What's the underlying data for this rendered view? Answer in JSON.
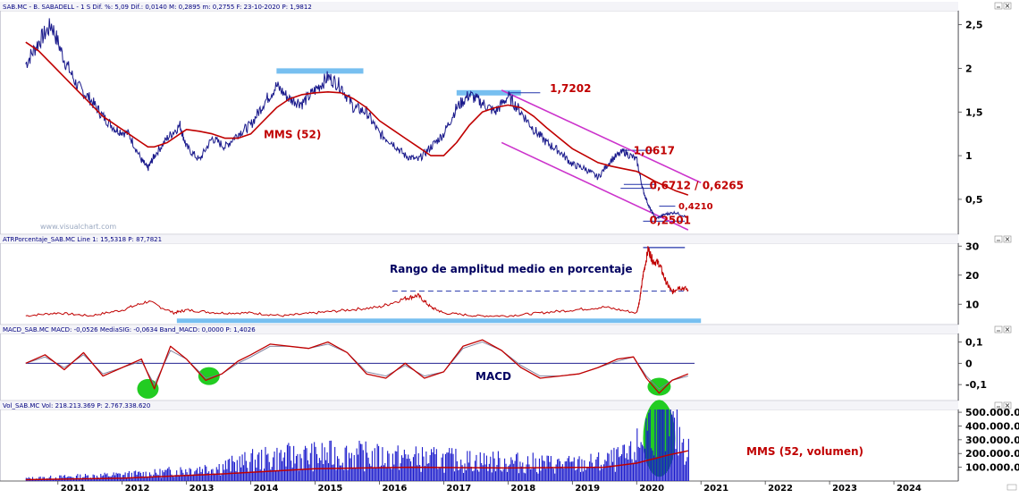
{
  "colors": {
    "price": "#1a1a8c",
    "mms": "#c00000",
    "signal": "#7a7a99",
    "channel": "#cc33cc",
    "highlight": "#77bff0",
    "green": "#22cc22",
    "volume": "#1a1acc",
    "zero": "#000080"
  },
  "icons": [
    "window-minimize-icon",
    "window-close-icon"
  ],
  "chart_data": [
    {
      "panel": "price",
      "type": "line",
      "header": "SAB.MC - B. SABADELL -   1 S  Dif. %: 5,09  Dif.: 0,0140  M: 0,2895  m: 0,2755  F: 23-10-2020  P: 1,9812",
      "watermark": "www.visualchart.com",
      "x_ticks": [
        "2011",
        "2012",
        "2013",
        "2014",
        "2015",
        "2016",
        "2017",
        "2018",
        "2019",
        "2020",
        "2021",
        "2022",
        "2023",
        "2024"
      ],
      "y_ticks": [
        "2,5",
        "2",
        "1,5",
        "1",
        "0,5"
      ],
      "y_tick_values": [
        2.5,
        2,
        1.5,
        1,
        0.5
      ],
      "ylim": [
        0.1,
        2.66
      ],
      "x": [
        2010.5,
        2010.7,
        2010.9,
        2011.1,
        2011.3,
        2011.5,
        2011.7,
        2011.9,
        2012.1,
        2012.3,
        2012.4,
        2012.5,
        2012.7,
        2012.9,
        2013.0,
        2013.2,
        2013.4,
        2013.6,
        2013.8,
        2014.0,
        2014.2,
        2014.4,
        2014.6,
        2014.8,
        2015.0,
        2015.2,
        2015.4,
        2015.6,
        2015.8,
        2016.0,
        2016.2,
        2016.4,
        2016.6,
        2016.8,
        2017.0,
        2017.2,
        2017.4,
        2017.6,
        2017.8,
        2018.0,
        2018.2,
        2018.4,
        2018.6,
        2018.8,
        2019.0,
        2019.2,
        2019.4,
        2019.6,
        2019.8,
        2020.0,
        2020.1,
        2020.2,
        2020.3,
        2020.45,
        2020.6,
        2020.8
      ],
      "series": [
        {
          "role": "price",
          "values": [
            2.05,
            2.3,
            2.5,
            2.1,
            1.8,
            1.65,
            1.45,
            1.3,
            1.25,
            0.95,
            0.85,
            1.0,
            1.2,
            1.35,
            1.1,
            0.95,
            1.2,
            1.1,
            1.25,
            1.35,
            1.6,
            1.8,
            1.65,
            1.6,
            1.75,
            1.9,
            1.8,
            1.55,
            1.5,
            1.25,
            1.15,
            1.0,
            0.95,
            1.1,
            1.25,
            1.55,
            1.7,
            1.6,
            1.5,
            1.68,
            1.5,
            1.3,
            1.15,
            1.05,
            0.9,
            0.85,
            0.75,
            0.95,
            1.05,
            0.95,
            0.6,
            0.4,
            0.28,
            0.33,
            0.35,
            0.29
          ]
        },
        {
          "name": "MMS (52)",
          "role": "mms",
          "values": [
            2.3,
            2.2,
            2.05,
            1.9,
            1.75,
            1.6,
            1.45,
            1.35,
            1.25,
            1.15,
            1.1,
            1.1,
            1.15,
            1.25,
            1.3,
            1.28,
            1.25,
            1.2,
            1.2,
            1.25,
            1.4,
            1.55,
            1.65,
            1.7,
            1.72,
            1.73,
            1.72,
            1.65,
            1.55,
            1.4,
            1.3,
            1.2,
            1.1,
            1.0,
            1.0,
            1.15,
            1.35,
            1.5,
            1.55,
            1.58,
            1.55,
            1.45,
            1.32,
            1.2,
            1.08,
            1.0,
            0.92,
            0.88,
            0.85,
            0.82,
            0.78,
            0.74,
            0.7,
            0.65,
            0.6,
            0.55
          ]
        }
      ],
      "annotations": [
        {
          "text": "MMS (52)",
          "x": 2014.2,
          "y": 1.24,
          "style": "red"
        },
        {
          "text": "1,7202",
          "x": 2018.65,
          "y": 1.77,
          "style": "red"
        },
        {
          "text": "1,0617",
          "x": 2019.95,
          "y": 1.06,
          "style": "red"
        },
        {
          "text": "0,6712 / 0,6265",
          "x": 2020.2,
          "y": 0.66,
          "style": "red"
        },
        {
          "text": "0,4210",
          "x": 2020.65,
          "y": 0.43,
          "style": "red-small"
        },
        {
          "text": "0,2501",
          "x": 2020.2,
          "y": 0.26,
          "style": "red"
        }
      ],
      "levels": [
        {
          "kind": "highlight",
          "x1": 2014.4,
          "x2": 2015.75,
          "y": 1.97
        },
        {
          "kind": "highlight",
          "x1": 2017.2,
          "x2": 2018.2,
          "y": 1.72
        },
        {
          "kind": "blue",
          "x1": 2018.0,
          "x2": 2018.5,
          "y": 1.72
        },
        {
          "kind": "blue",
          "x1": 2019.8,
          "x2": 2020.25,
          "y": 1.0617
        },
        {
          "kind": "blue",
          "x1": 2019.8,
          "x2": 2020.3,
          "y": 0.6712
        },
        {
          "kind": "blue",
          "x1": 2019.75,
          "x2": 2020.3,
          "y": 0.6265
        },
        {
          "kind": "blue",
          "x1": 2020.35,
          "x2": 2020.6,
          "y": 0.421
        },
        {
          "kind": "blue",
          "x1": 2020.1,
          "x2": 2020.75,
          "y": 0.2501
        }
      ],
      "channel": [
        {
          "x1": 2017.9,
          "y1": 1.75,
          "x2": 2021.0,
          "y2": 0.69
        },
        {
          "x1": 2017.9,
          "y1": 1.15,
          "x2": 2020.8,
          "y2": 0.15
        }
      ]
    },
    {
      "panel": "atr",
      "type": "line",
      "header": "ATRPorcentaje_SAB.MC  Line 1: 15,5318  P: 87,7821",
      "title": "Rango de amplitud medio en porcentaje",
      "y_ticks": [
        "30",
        "20",
        "10"
      ],
      "y_tick_values": [
        30,
        20,
        10
      ],
      "ylim": [
        3,
        31
      ],
      "x": [
        2010.5,
        2011.0,
        2011.5,
        2012.0,
        2012.4,
        2012.8,
        2013.0,
        2013.5,
        2014.0,
        2014.5,
        2015.0,
        2015.5,
        2016.0,
        2016.4,
        2016.6,
        2016.8,
        2017.0,
        2017.5,
        2018.0,
        2018.5,
        2019.0,
        2019.5,
        2020.0,
        2020.05,
        2020.1,
        2020.18,
        2020.25,
        2020.35,
        2020.45,
        2020.55,
        2020.65,
        2020.8
      ],
      "values": [
        6,
        7,
        6,
        8,
        11,
        7,
        8,
        7,
        7,
        6,
        7,
        8,
        9,
        12,
        13,
        9,
        7,
        6,
        6,
        7,
        8,
        9,
        7,
        12,
        20,
        29,
        25,
        24,
        18,
        14,
        16,
        15
      ],
      "levels": [
        {
          "kind": "blue",
          "x1": 2020.1,
          "x2": 2020.75,
          "y": 29.5
        },
        {
          "kind": "dashed",
          "x1": 2016.2,
          "x2": 2020.8,
          "y": 14.5
        },
        {
          "kind": "highlight",
          "x1": 2012.85,
          "x2": 2021.0,
          "y": 4.3
        }
      ]
    },
    {
      "panel": "macd",
      "type": "line",
      "header": "MACD_SAB.MC  MACD: -0,0526  MediaSIG: -0,0634  Band_MACD: 0,0000  P: 1,4026",
      "title": "MACD",
      "y_ticks": [
        "0,1",
        "0",
        "-0,1"
      ],
      "y_tick_values": [
        0.1,
        0,
        -0.1
      ],
      "ylim": [
        -0.175,
        0.14
      ],
      "x": [
        2010.5,
        2010.8,
        2011.1,
        2011.4,
        2011.7,
        2012.0,
        2012.3,
        2012.5,
        2012.75,
        2013.0,
        2013.3,
        2013.55,
        2013.8,
        2014.0,
        2014.3,
        2014.6,
        2014.9,
        2015.2,
        2015.5,
        2015.8,
        2016.1,
        2016.4,
        2016.7,
        2017.0,
        2017.3,
        2017.6,
        2017.9,
        2018.2,
        2018.5,
        2018.8,
        2019.1,
        2019.4,
        2019.7,
        2019.95,
        2020.15,
        2020.35,
        2020.55,
        2020.8
      ],
      "series": [
        {
          "name": "MACD",
          "role": "macd",
          "values": [
            0.0,
            0.04,
            -0.03,
            0.05,
            -0.06,
            -0.02,
            0.02,
            -0.12,
            0.08,
            0.02,
            -0.08,
            -0.05,
            0.01,
            0.04,
            0.09,
            0.08,
            0.07,
            0.1,
            0.05,
            -0.05,
            -0.07,
            0.0,
            -0.07,
            -0.04,
            0.08,
            0.11,
            0.06,
            -0.02,
            -0.07,
            -0.06,
            -0.05,
            -0.02,
            0.02,
            0.03,
            -0.07,
            -0.14,
            -0.08,
            -0.05
          ]
        },
        {
          "name": "MediaSIG",
          "role": "signal",
          "values": [
            0.0,
            0.03,
            -0.02,
            0.04,
            -0.05,
            -0.02,
            0.01,
            -0.1,
            0.06,
            0.02,
            -0.07,
            -0.05,
            0.0,
            0.03,
            0.08,
            0.08,
            0.07,
            0.09,
            0.05,
            -0.04,
            -0.06,
            -0.01,
            -0.06,
            -0.04,
            0.07,
            0.1,
            0.06,
            -0.01,
            -0.06,
            -0.06,
            -0.05,
            -0.02,
            0.01,
            0.03,
            -0.06,
            -0.12,
            -0.08,
            -0.06
          ]
        }
      ],
      "highlights": [
        {
          "x": 2012.4,
          "y": -0.12,
          "rx": 12,
          "ry": 11
        },
        {
          "x": 2013.35,
          "y": -0.06,
          "rx": 12,
          "ry": 10
        },
        {
          "x": 2020.35,
          "y": -0.11,
          "rx": 13,
          "ry": 10
        }
      ]
    },
    {
      "panel": "volume",
      "type": "bar",
      "header": "Vol_SAB.MC  Vol: 218.213.369  P: 2.767.338.620",
      "title": "MMS (52, volumen)",
      "y_ticks": [
        "500.000.0",
        "400.000.0",
        "300.000.0",
        "200.000.0",
        "100.000.0"
      ],
      "y_tick_values": [
        500000000,
        400000000,
        300000000,
        200000000,
        100000000
      ],
      "ylim": [
        0,
        520000000
      ],
      "x": [
        2010.5,
        2011.0,
        2011.5,
        2012.0,
        2012.5,
        2013.0,
        2013.5,
        2014.0,
        2014.5,
        2015.0,
        2015.5,
        2016.0,
        2016.5,
        2017.0,
        2017.5,
        2018.0,
        2018.5,
        2019.0,
        2019.5,
        2019.9,
        2020.1,
        2020.2,
        2020.3,
        2020.4,
        2020.5,
        2020.6,
        2020.8
      ],
      "values": [
        20000000,
        30000000,
        40000000,
        50000000,
        60000000,
        90000000,
        110000000,
        160000000,
        190000000,
        200000000,
        210000000,
        190000000,
        180000000,
        170000000,
        160000000,
        150000000,
        140000000,
        130000000,
        150000000,
        200000000,
        350000000,
        500000000,
        480000000,
        420000000,
        450000000,
        380000000,
        250000000
      ],
      "series": [
        {
          "name": "MMS (52, volumen)",
          "role": "mms",
          "x": [
            2010.5,
            2012.0,
            2013.5,
            2015.0,
            2016.5,
            2018.0,
            2019.5,
            2020.0,
            2020.5,
            2020.8
          ],
          "values": [
            10000000,
            20000000,
            50000000,
            90000000,
            100000000,
            95000000,
            100000000,
            130000000,
            190000000,
            220000000
          ]
        }
      ],
      "highlights": [
        {
          "x": 2020.35,
          "y": 310000000,
          "rx": 18,
          "ry": 43
        }
      ]
    }
  ]
}
